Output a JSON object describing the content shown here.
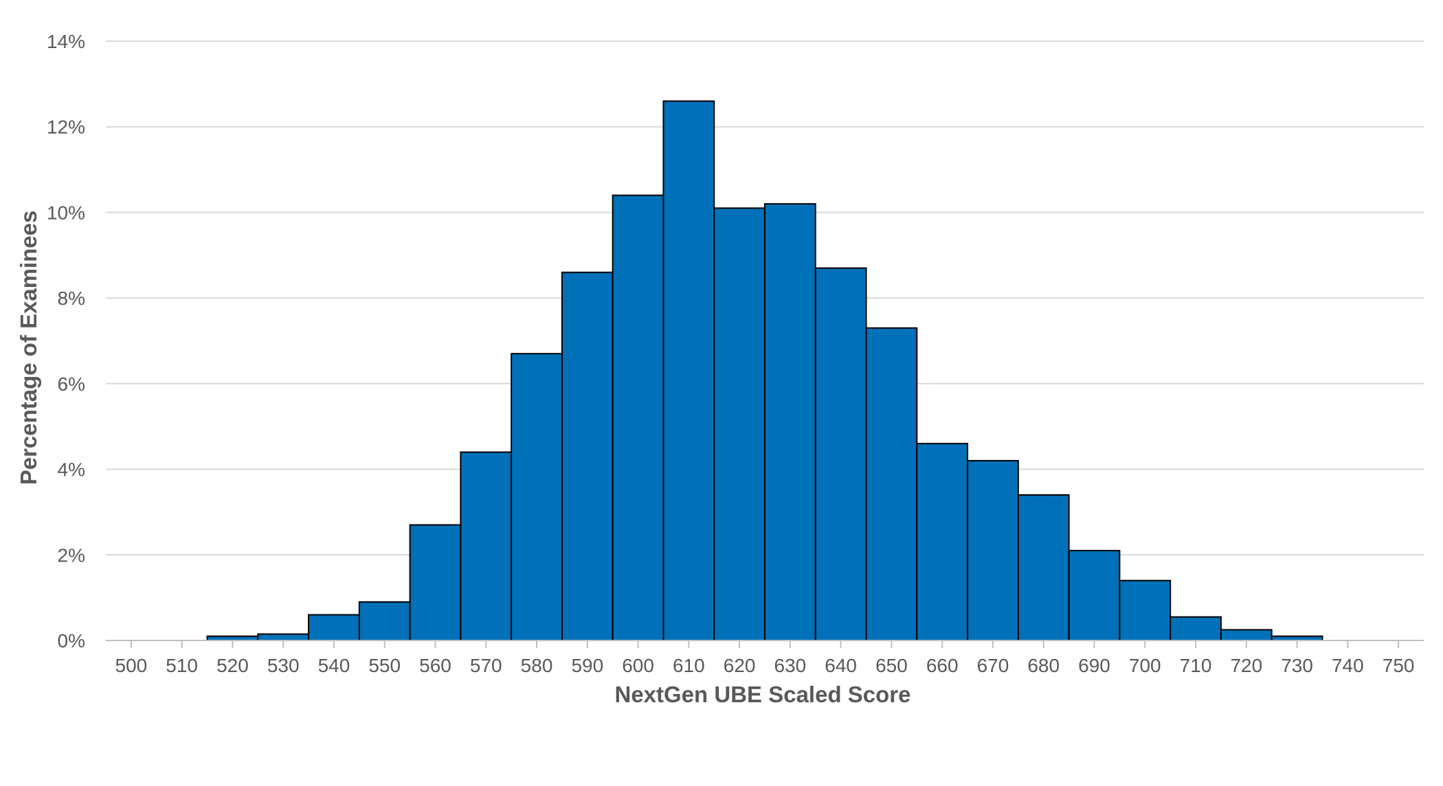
{
  "chart_data": {
    "type": "bar",
    "title": "",
    "xlabel": "NextGen UBE Scaled Score",
    "ylabel": "Percentage of Examinees",
    "x_ticks": [
      500,
      510,
      520,
      530,
      540,
      550,
      560,
      570,
      580,
      590,
      600,
      610,
      620,
      630,
      640,
      650,
      660,
      670,
      680,
      690,
      700,
      710,
      720,
      730,
      740,
      750
    ],
    "y_ticks": [
      "0%",
      "2%",
      "4%",
      "6%",
      "8%",
      "10%",
      "12%",
      "14%"
    ],
    "xlim": [
      495,
      755
    ],
    "ylim": [
      0,
      14
    ],
    "bin_width": 10,
    "grid": "horizontal",
    "legend": "none",
    "bar_color": "#0070b8",
    "bar_edge_color": "#000000",
    "categories": [
      520,
      530,
      540,
      550,
      560,
      570,
      580,
      590,
      600,
      610,
      620,
      630,
      640,
      650,
      660,
      670,
      680,
      690,
      700,
      710,
      720,
      730
    ],
    "values": [
      0.1,
      0.15,
      0.6,
      0.9,
      2.7,
      4.4,
      6.7,
      8.6,
      10.4,
      12.6,
      10.1,
      10.2,
      8.7,
      7.3,
      4.6,
      4.2,
      3.4,
      2.1,
      1.4,
      0.55,
      0.25,
      0.1
    ]
  }
}
